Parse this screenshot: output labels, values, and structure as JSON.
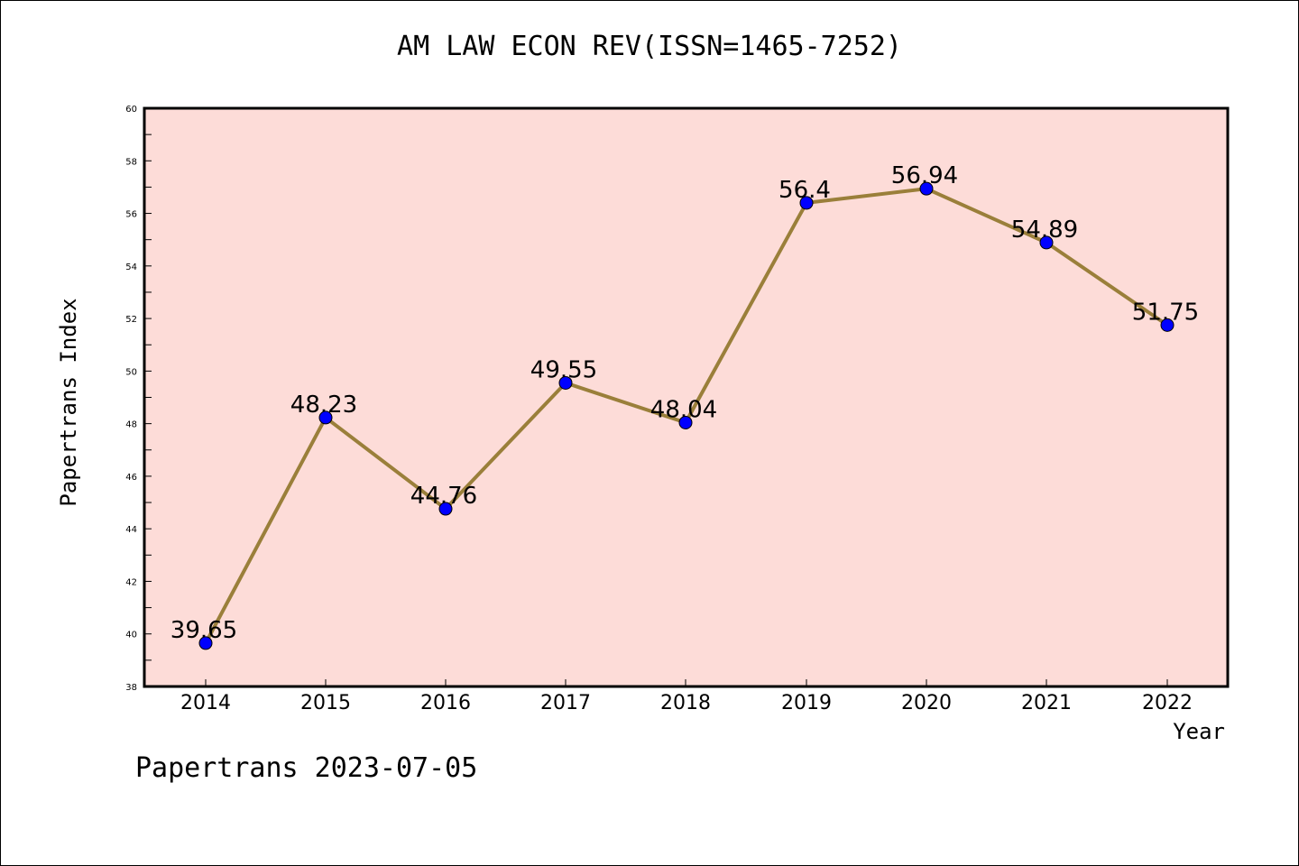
{
  "chart_data": {
    "type": "line",
    "title": "AM LAW ECON REV(ISSN=1465-7252)",
    "xlabel": "Year",
    "ylabel": "Papertrans Index",
    "footer": "Papertrans 2023-07-05",
    "categories": [
      "2014",
      "2015",
      "2016",
      "2017",
      "2018",
      "2019",
      "2020",
      "2021",
      "2022"
    ],
    "values": [
      39.65,
      48.23,
      44.76,
      49.55,
      48.04,
      56.4,
      56.94,
      54.89,
      51.75
    ],
    "data_labels": [
      "39.65",
      "48.23",
      "44.76",
      "49.55",
      "48.04",
      "56.4",
      "56.94",
      "54.89",
      "51.75"
    ],
    "ylim": [
      38,
      60
    ],
    "yticks": [
      38,
      40,
      42,
      44,
      46,
      48,
      50,
      52,
      54,
      56,
      58,
      60
    ],
    "grid": false,
    "colors": {
      "plot_background": "#fddcd8",
      "line": "#9a7f3a",
      "marker": "#0000ff"
    }
  }
}
